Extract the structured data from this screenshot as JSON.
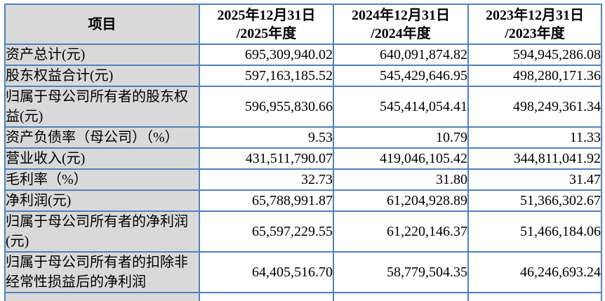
{
  "table": {
    "colors": {
      "border": "#4f81bd",
      "label_background": "#d9d9d9",
      "text": "#000000"
    },
    "header": {
      "item": "项目",
      "col_2025_line1": "2025年12月31日",
      "col_2025_line2": "/2025年度",
      "col_2024_line1": "2024年12月31日",
      "col_2024_line2": "/2024年度",
      "col_2023_line1": "2023年12月31日",
      "col_2023_line2": "/2023年度"
    },
    "rows": [
      {
        "label": "资产总计(元)",
        "values": [
          "695,309,940.02",
          "640,091,874.82",
          "594,945,286.08"
        ]
      },
      {
        "label": "股东权益合计(元)",
        "values": [
          "597,163,185.52",
          "545,429,646.95",
          "498,280,171.36"
        ]
      },
      {
        "label": "归属于母公司所有者的股东权益(元)",
        "values": [
          "596,955,830.66",
          "545,414,054.41",
          "498,249,361.34"
        ]
      },
      {
        "label": "资产负债率（母公司）（%）",
        "values": [
          "9.53",
          "10.79",
          "11.33"
        ]
      },
      {
        "label": "营业收入(元)",
        "values": [
          "431,511,790.07",
          "419,046,105.42",
          "344,811,041.92"
        ]
      },
      {
        "label": "毛利率（%）",
        "values": [
          "32.73",
          "31.80",
          "31.47"
        ]
      },
      {
        "label": "净利润(元)",
        "values": [
          "65,788,991.87",
          "61,204,928.89",
          "51,366,302.67"
        ]
      },
      {
        "label": "归属于母公司所有者的净利润(元)",
        "values": [
          "65,597,229.55",
          "61,220,146.37",
          "51,466,184.06"
        ]
      },
      {
        "label": "归属于母公司所有者的扣除非经常性损益后的净利润",
        "values": [
          "64,405,516.70",
          "58,779,504.35",
          "46,246,693.24"
        ]
      }
    ]
  }
}
